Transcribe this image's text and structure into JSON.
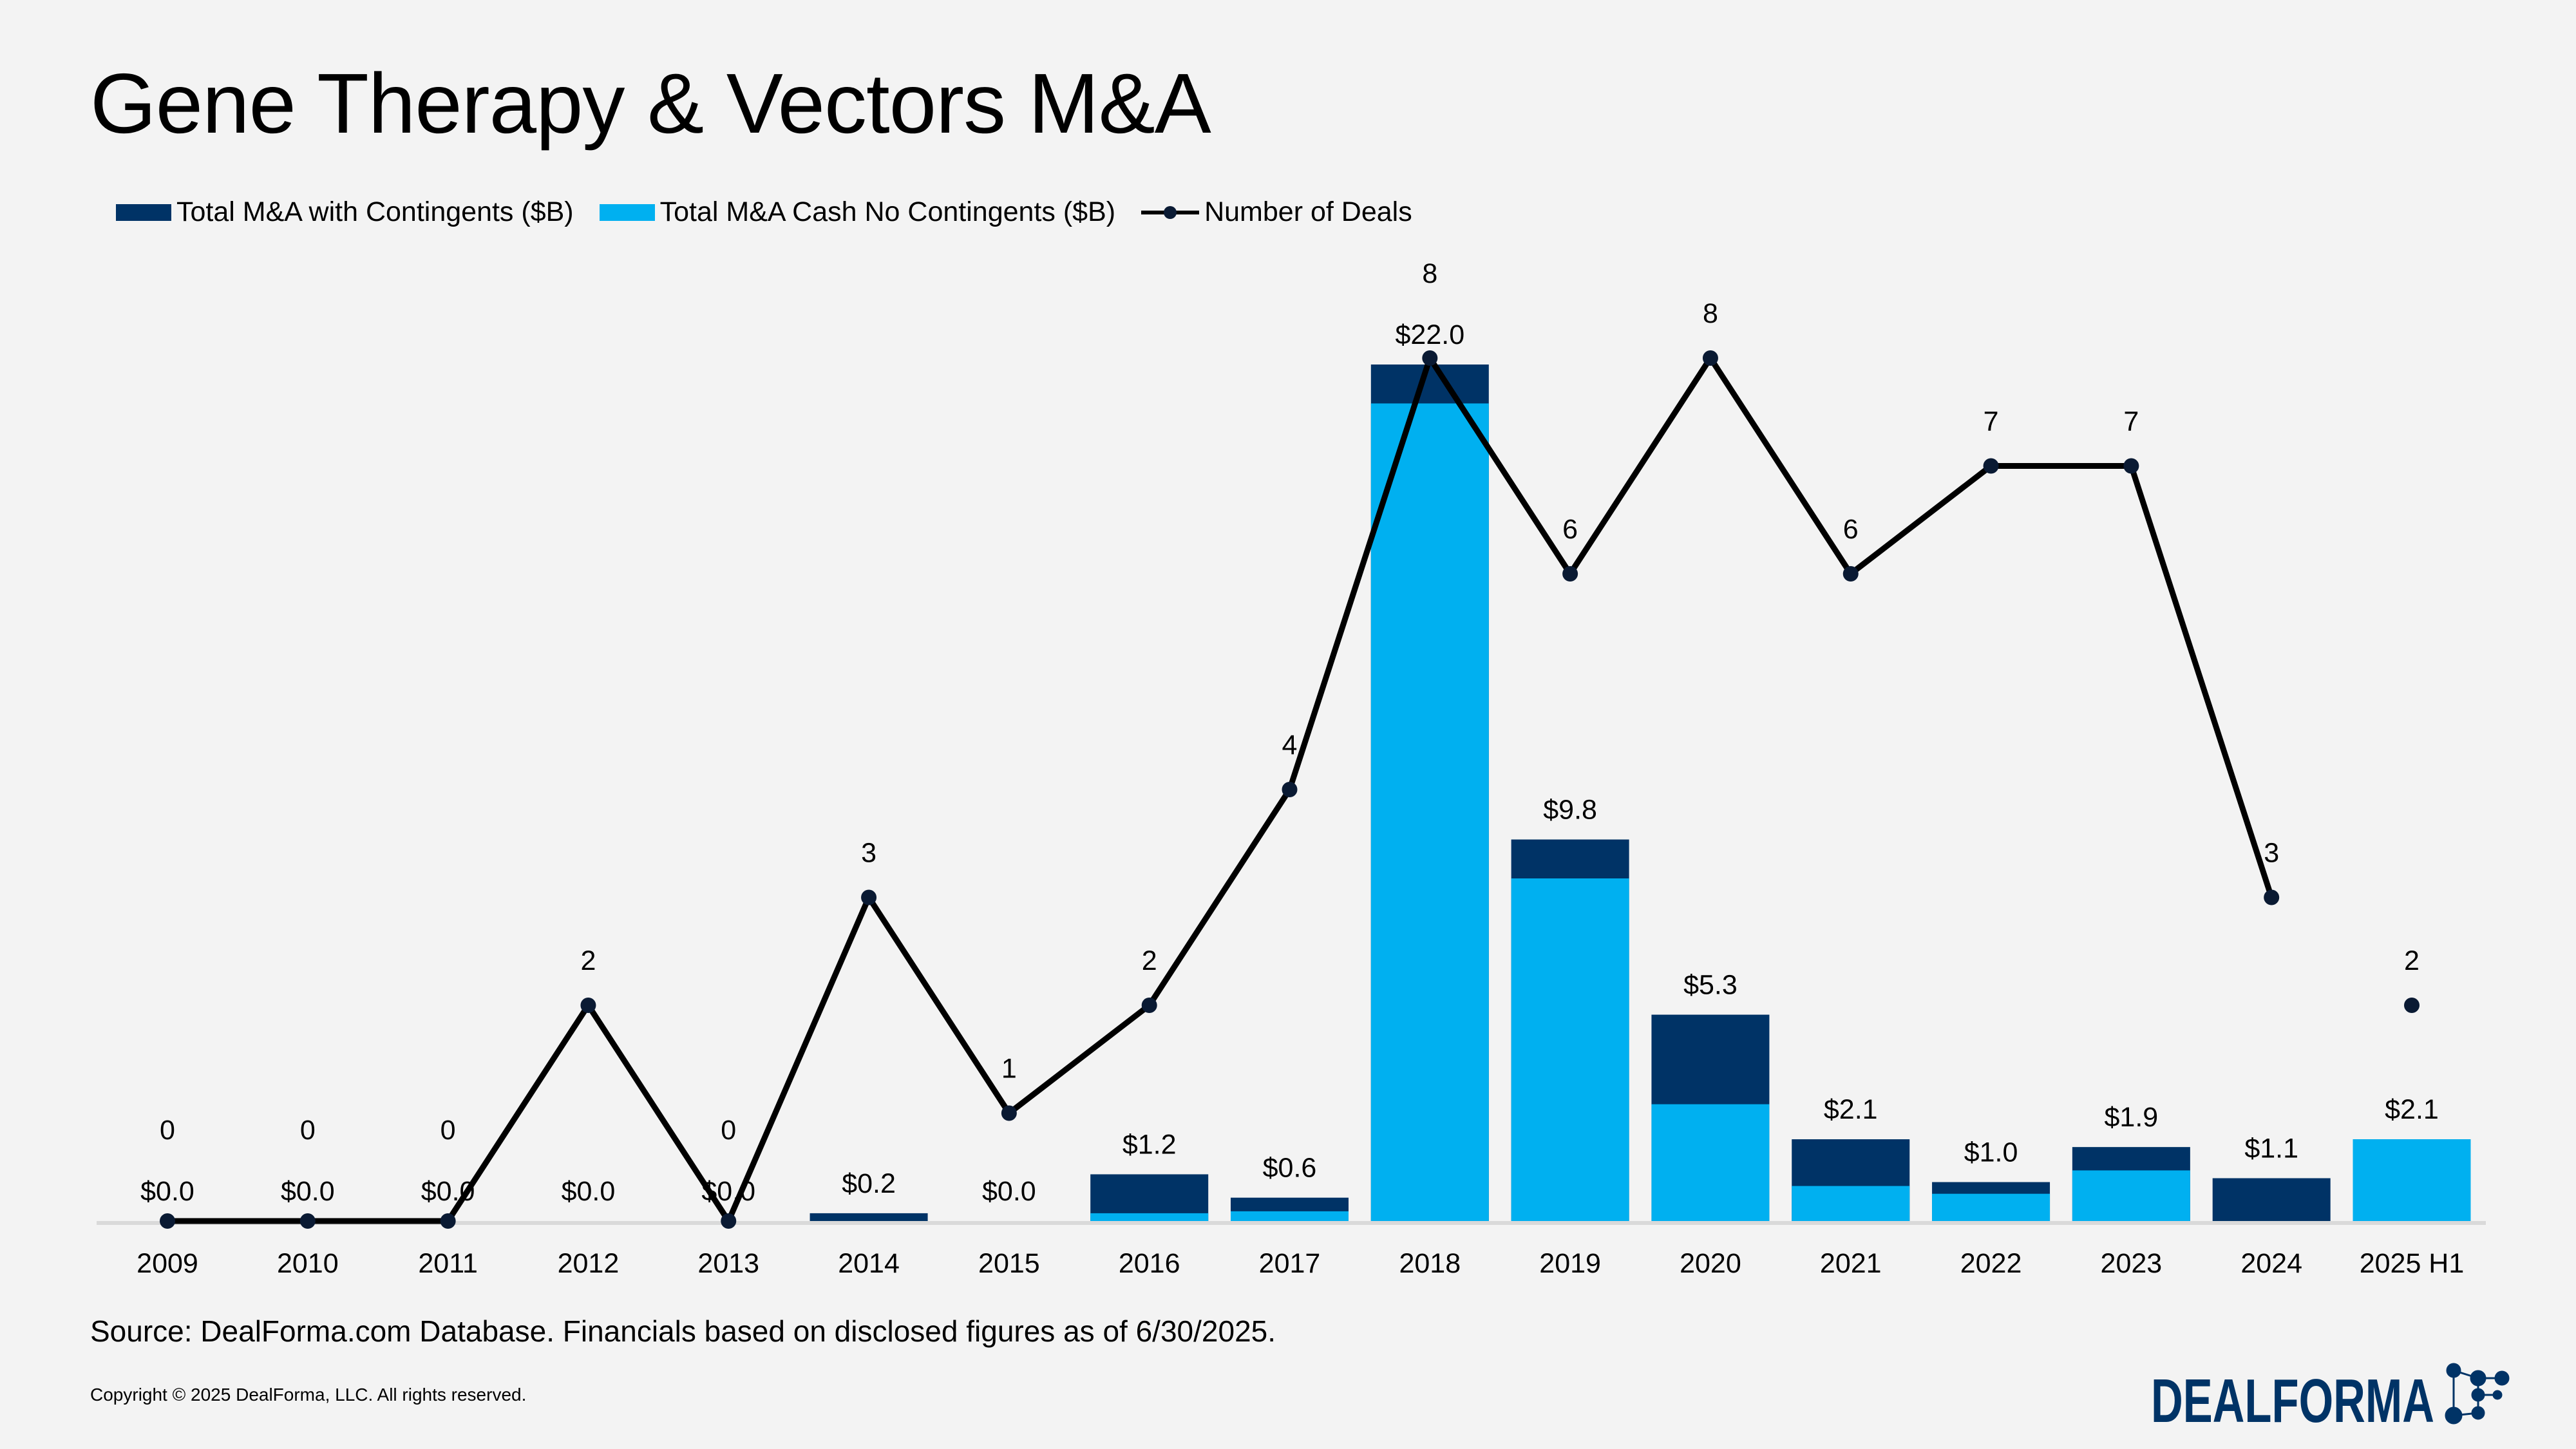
{
  "title": "Gene Therapy & Vectors M&A",
  "source": "Source: DealForma.com Database. Financials based on disclosed figures as of 6/30/2025.",
  "copyright": "Copyright © 2025 DealForma, LLC. All rights reserved.",
  "logo_text": "DEALFORMA",
  "colors": {
    "contingents": "#003366",
    "cash": "#00b0f0",
    "deals": "#000000",
    "background": "#f3f3f3"
  },
  "chart_data": {
    "type": "bar",
    "stacked": true,
    "title": "Gene Therapy & Vectors M&A",
    "categories": [
      "2009",
      "2010",
      "2011",
      "2012",
      "2013",
      "2014",
      "2015",
      "2016",
      "2017",
      "2018",
      "2019",
      "2020",
      "2021",
      "2022",
      "2023",
      "2024",
      "2025 H1"
    ],
    "series": [
      {
        "name": "Total M&A with Contingents ($B)",
        "type": "bar",
        "values": [
          0.0,
          0.0,
          0.0,
          0.0,
          0.0,
          0.2,
          0.0,
          1.2,
          0.6,
          22.0,
          9.8,
          5.3,
          2.1,
          1.0,
          1.9,
          1.1,
          2.1
        ],
        "labels": [
          "$0.0",
          "$0.0",
          "$0.0",
          "$0.0",
          "$0.0",
          "$0.2",
          "$0.0",
          "$1.2",
          "$0.6",
          "$22.0",
          "$9.8",
          "$5.3",
          "$2.1",
          "$1.0",
          "$1.9",
          "$1.1",
          "$2.1"
        ]
      },
      {
        "name": "Total M&A Cash No Contingents ($B)",
        "type": "bar",
        "values": [
          0,
          0,
          0,
          0,
          0,
          0,
          0,
          0.2,
          0.25,
          21.0,
          8.8,
          3.0,
          0.9,
          0.7,
          1.3,
          0,
          2.1
        ]
      },
      {
        "name": "Number of Deals",
        "type": "line",
        "axis": "secondary",
        "values": [
          0,
          0,
          0,
          2,
          0,
          3,
          1,
          2,
          4,
          8,
          6,
          8,
          6,
          7,
          7,
          3,
          2
        ],
        "break_before_last": true
      }
    ],
    "ylim": [
      0,
      22
    ],
    "y2lim": [
      0,
      8
    ],
    "grid": false,
    "legend": "top-left"
  }
}
